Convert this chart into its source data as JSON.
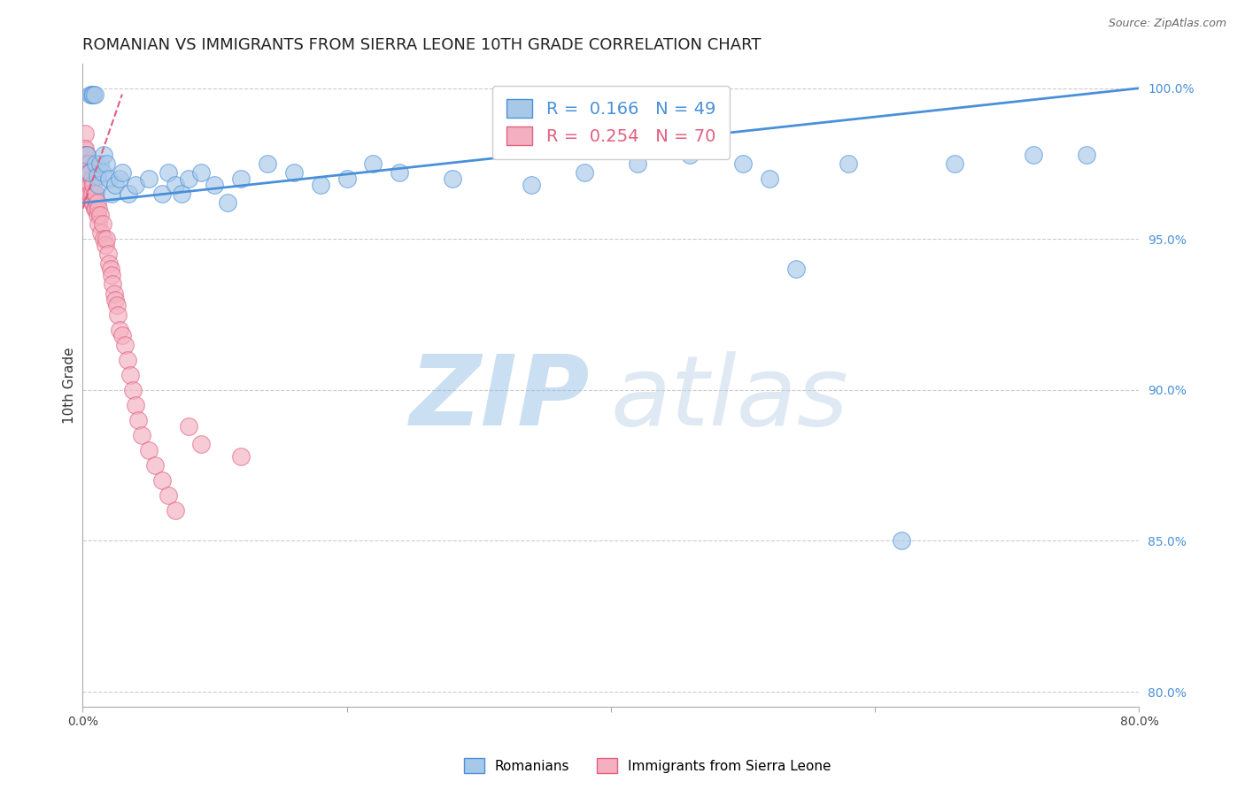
{
  "title": "ROMANIAN VS IMMIGRANTS FROM SIERRA LEONE 10TH GRADE CORRELATION CHART",
  "source": "Source: ZipAtlas.com",
  "ylabel": "10th Grade",
  "xlim": [
    0.0,
    0.8
  ],
  "ylim": [
    0.795,
    1.008
  ],
  "xticks": [
    0.0,
    0.2,
    0.4,
    0.6,
    0.8
  ],
  "xticklabels": [
    "0.0%",
    "",
    "",
    "",
    "80.0%"
  ],
  "ytick_positions": [
    0.8,
    0.85,
    0.9,
    0.95,
    1.0
  ],
  "yticklabels_right": [
    "80.0%",
    "85.0%",
    "90.0%",
    "95.0%",
    "100.0%"
  ],
  "R_blue": 0.166,
  "N_blue": 49,
  "R_pink": 0.254,
  "N_pink": 70,
  "blue_color": "#a8c8e8",
  "pink_color": "#f4b0c0",
  "blue_line_color": "#4a90d9",
  "pink_line_color": "#e06080",
  "legend_label_blue": "Romanians",
  "legend_label_pink": "Immigrants from Sierra Leone",
  "watermark_zip": "ZIP",
  "watermark_atlas": "atlas",
  "blue_scatter_x": [
    0.003,
    0.005,
    0.006,
    0.007,
    0.008,
    0.009,
    0.01,
    0.011,
    0.012,
    0.013,
    0.015,
    0.016,
    0.018,
    0.02,
    0.022,
    0.025,
    0.028,
    0.03,
    0.035,
    0.04,
    0.05,
    0.06,
    0.065,
    0.07,
    0.075,
    0.08,
    0.09,
    0.1,
    0.11,
    0.12,
    0.14,
    0.16,
    0.18,
    0.2,
    0.22,
    0.24,
    0.28,
    0.34,
    0.38,
    0.42,
    0.46,
    0.5,
    0.52,
    0.54,
    0.58,
    0.62,
    0.66,
    0.72,
    0.76
  ],
  "blue_scatter_y": [
    0.978,
    0.972,
    0.998,
    0.998,
    0.998,
    0.998,
    0.975,
    0.971,
    0.968,
    0.975,
    0.972,
    0.978,
    0.975,
    0.97,
    0.965,
    0.968,
    0.97,
    0.972,
    0.965,
    0.968,
    0.97,
    0.965,
    0.972,
    0.968,
    0.965,
    0.97,
    0.972,
    0.968,
    0.962,
    0.97,
    0.975,
    0.972,
    0.968,
    0.97,
    0.975,
    0.972,
    0.97,
    0.968,
    0.972,
    0.975,
    0.978,
    0.975,
    0.97,
    0.94,
    0.975,
    0.85,
    0.975,
    0.978,
    0.978
  ],
  "pink_scatter_x": [
    0.001,
    0.001,
    0.001,
    0.001,
    0.001,
    0.002,
    0.002,
    0.002,
    0.002,
    0.002,
    0.003,
    0.003,
    0.003,
    0.003,
    0.004,
    0.004,
    0.004,
    0.004,
    0.005,
    0.005,
    0.005,
    0.005,
    0.006,
    0.006,
    0.006,
    0.007,
    0.007,
    0.007,
    0.008,
    0.008,
    0.009,
    0.009,
    0.01,
    0.01,
    0.011,
    0.011,
    0.012,
    0.012,
    0.013,
    0.014,
    0.015,
    0.016,
    0.017,
    0.018,
    0.019,
    0.02,
    0.021,
    0.022,
    0.023,
    0.024,
    0.025,
    0.026,
    0.027,
    0.028,
    0.03,
    0.032,
    0.034,
    0.036,
    0.038,
    0.04,
    0.042,
    0.045,
    0.05,
    0.055,
    0.06,
    0.065,
    0.07,
    0.08,
    0.09,
    0.12
  ],
  "pink_scatter_y": [
    0.98,
    0.978,
    0.975,
    0.972,
    0.97,
    0.985,
    0.98,
    0.978,
    0.975,
    0.972,
    0.978,
    0.975,
    0.972,
    0.968,
    0.975,
    0.972,
    0.968,
    0.965,
    0.975,
    0.972,
    0.968,
    0.965,
    0.972,
    0.968,
    0.965,
    0.97,
    0.965,
    0.962,
    0.968,
    0.962,
    0.965,
    0.96,
    0.965,
    0.96,
    0.962,
    0.958,
    0.96,
    0.955,
    0.958,
    0.952,
    0.955,
    0.95,
    0.948,
    0.95,
    0.945,
    0.942,
    0.94,
    0.938,
    0.935,
    0.932,
    0.93,
    0.928,
    0.925,
    0.92,
    0.918,
    0.915,
    0.91,
    0.905,
    0.9,
    0.895,
    0.89,
    0.885,
    0.88,
    0.875,
    0.87,
    0.865,
    0.86,
    0.888,
    0.882,
    0.878
  ],
  "blue_line_x0": 0.0,
  "blue_line_y0": 0.962,
  "blue_line_x1": 0.8,
  "blue_line_y1": 1.0,
  "pink_line_x0": 0.0,
  "pink_line_y0": 0.96,
  "pink_line_x1": 0.03,
  "pink_line_y1": 0.998,
  "background_color": "#ffffff",
  "grid_color": "#cccccc",
  "title_fontsize": 13,
  "axis_fontsize": 11
}
